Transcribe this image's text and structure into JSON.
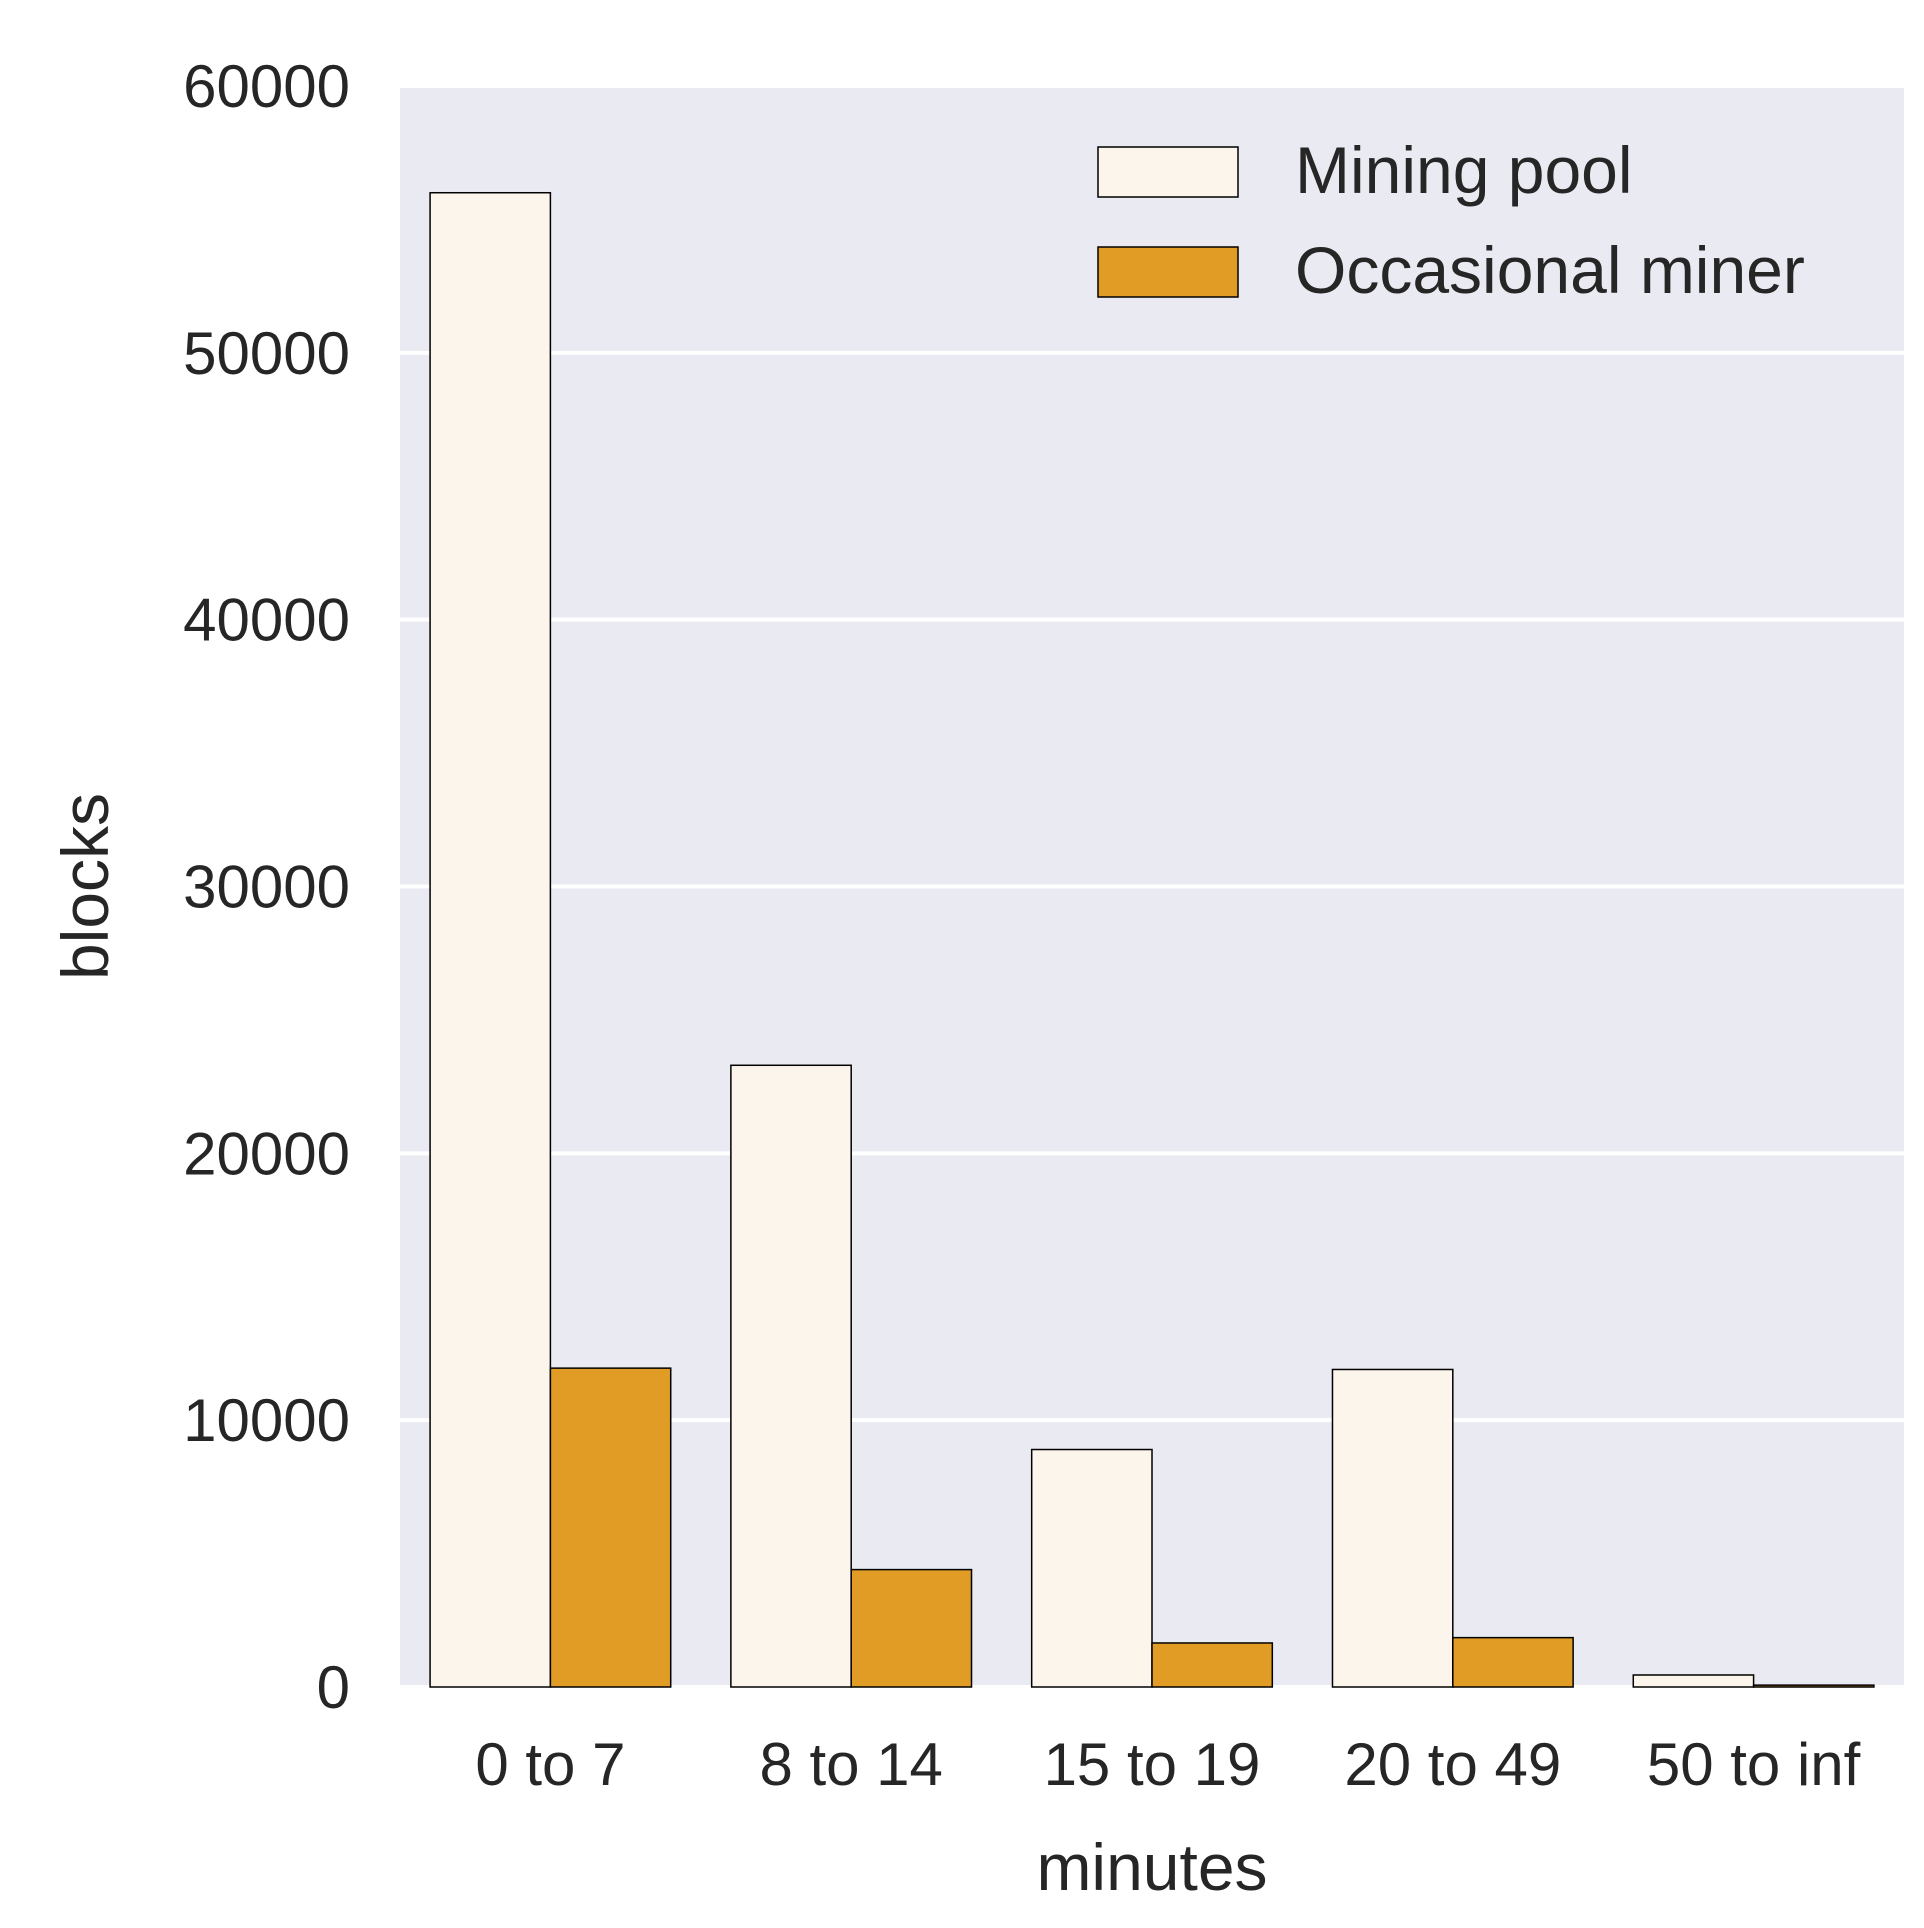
{
  "chart_data": {
    "type": "bar",
    "xlabel": "minutes",
    "ylabel": "blocks",
    "categories": [
      "0 to 7",
      "8 to 14",
      "15 to 19",
      "20 to 49",
      "50 to inf"
    ],
    "series": [
      {
        "name": "Mining pool",
        "values": [
          56000,
          23300,
          8900,
          11900,
          450
        ],
        "color": "#fbf5eb"
      },
      {
        "name": "Occasional miner",
        "values": [
          11950,
          4400,
          1650,
          1850,
          70
        ],
        "color": "#e09c24"
      }
    ],
    "ylim": [
      0,
      60000
    ],
    "yticks": [
      0,
      10000,
      20000,
      30000,
      40000,
      50000,
      60000
    ],
    "grid": true,
    "legend": "top-right",
    "background": "#eaeaf2",
    "edge_color": "#000000"
  }
}
